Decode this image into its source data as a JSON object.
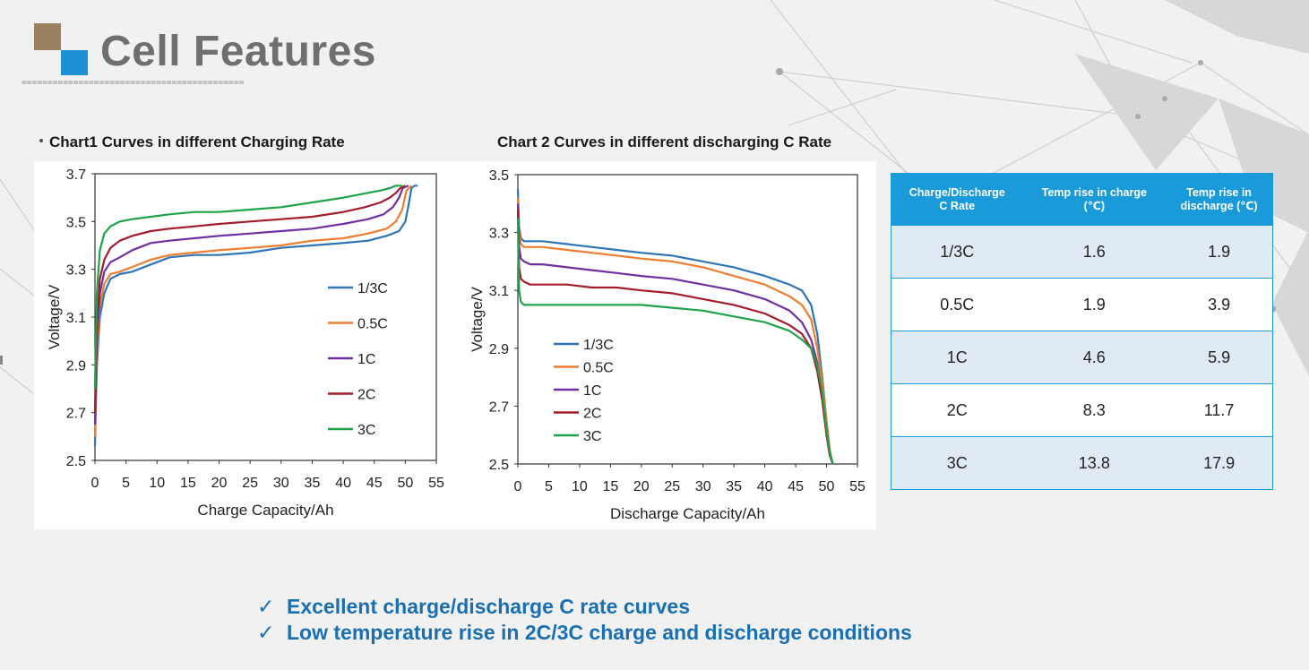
{
  "header": {
    "title": "Cell Features",
    "divider": "==========================================="
  },
  "colors": {
    "accent_blue": "#1e90d6",
    "accent_brown": "#9b8160",
    "table_header": "#1b9ad9",
    "note_text": "#1a6fb0"
  },
  "chart_data": [
    {
      "type": "line",
      "title": "Chart1  Curves in different Charging Rate",
      "xlabel": "Charge Capacity/Ah",
      "ylabel": "Voltage/V",
      "xlim": [
        0,
        55
      ],
      "ylim": [
        2.5,
        3.7
      ],
      "xticks": [
        0,
        5,
        10,
        15,
        20,
        25,
        30,
        35,
        40,
        45,
        50,
        55
      ],
      "yticks": [
        2.5,
        2.7,
        2.9,
        3.1,
        3.3,
        3.5,
        3.7
      ],
      "ytick_labels": [
        "2.5",
        "2.7",
        "2.9",
        "3.1",
        "3.3",
        "3.5",
        "3.7"
      ],
      "legend_position": "right-middle",
      "series": [
        {
          "name": "1/3C",
          "color": "#2e75b6",
          "x": [
            0,
            0.3,
            0.8,
            1.5,
            2.5,
            4,
            6,
            9,
            12,
            16,
            20,
            25,
            30,
            35,
            40,
            44,
            47,
            49,
            50,
            50.6,
            51,
            51.5,
            52
          ],
          "y": [
            2.56,
            2.9,
            3.1,
            3.2,
            3.26,
            3.28,
            3.29,
            3.32,
            3.35,
            3.36,
            3.36,
            3.37,
            3.39,
            3.4,
            3.41,
            3.42,
            3.44,
            3.46,
            3.5,
            3.58,
            3.64,
            3.65,
            3.65
          ]
        },
        {
          "name": "0.5C",
          "color": "#ed7d31",
          "x": [
            0,
            0.3,
            0.8,
            1.5,
            2.5,
            4,
            6,
            9,
            12,
            16,
            20,
            25,
            30,
            35,
            40,
            44,
            47,
            48.5,
            49.5,
            50.2,
            51
          ],
          "y": [
            2.6,
            2.95,
            3.15,
            3.24,
            3.28,
            3.29,
            3.31,
            3.34,
            3.36,
            3.37,
            3.38,
            3.39,
            3.4,
            3.42,
            3.43,
            3.45,
            3.47,
            3.5,
            3.55,
            3.63,
            3.65
          ]
        },
        {
          "name": "1C",
          "color": "#7030a0",
          "x": [
            0,
            0.3,
            0.8,
            1.5,
            2.5,
            4,
            6,
            9,
            12,
            16,
            20,
            25,
            30,
            35,
            40,
            44,
            46.5,
            48,
            49,
            49.6,
            50.5
          ],
          "y": [
            2.65,
            3.0,
            3.2,
            3.29,
            3.33,
            3.35,
            3.38,
            3.41,
            3.42,
            3.43,
            3.44,
            3.45,
            3.46,
            3.47,
            3.49,
            3.51,
            3.53,
            3.56,
            3.6,
            3.64,
            3.65
          ]
        },
        {
          "name": "2C",
          "color": "#a31c2a",
          "x": [
            0,
            0.3,
            0.8,
            1.5,
            2.5,
            4,
            6,
            9,
            12,
            16,
            20,
            25,
            30,
            35,
            40,
            43.5,
            46,
            47.5,
            48.5,
            49.2,
            50
          ],
          "y": [
            2.7,
            3.08,
            3.26,
            3.34,
            3.39,
            3.42,
            3.44,
            3.46,
            3.47,
            3.48,
            3.49,
            3.5,
            3.51,
            3.52,
            3.54,
            3.56,
            3.58,
            3.6,
            3.62,
            3.64,
            3.65
          ]
        },
        {
          "name": "3C",
          "color": "#1fa34a",
          "x": [
            0,
            0.3,
            0.8,
            1.5,
            2.5,
            4,
            6,
            9,
            12,
            16,
            20,
            25,
            30,
            35,
            40,
            44,
            46,
            47.5,
            48.5,
            49.5
          ],
          "y": [
            2.8,
            3.2,
            3.38,
            3.45,
            3.48,
            3.5,
            3.51,
            3.52,
            3.53,
            3.54,
            3.54,
            3.55,
            3.56,
            3.58,
            3.6,
            3.62,
            3.63,
            3.64,
            3.65,
            3.65
          ]
        }
      ]
    },
    {
      "type": "line",
      "title": "Chart 2  Curves in different discharging C Rate",
      "xlabel": "Discharge Capacity/Ah",
      "ylabel": "Voltage/V",
      "xlim": [
        0,
        55
      ],
      "ylim": [
        2.5,
        3.5
      ],
      "xticks": [
        0,
        5,
        10,
        15,
        20,
        25,
        30,
        35,
        40,
        45,
        50,
        55
      ],
      "yticks": [
        2.5,
        2.7,
        2.9,
        3.1,
        3.3,
        3.5
      ],
      "ytick_labels": [
        "2.5",
        "2.7",
        "2.9",
        "3.1",
        "3.3",
        "3.5"
      ],
      "legend_position": "left-lower",
      "series": [
        {
          "name": "1/3C",
          "color": "#2e75b6",
          "x": [
            0,
            0.2,
            0.5,
            1,
            2,
            4,
            8,
            12,
            16,
            20,
            25,
            30,
            35,
            40,
            44,
            46,
            47.5,
            48.5,
            49.3,
            50,
            50.5,
            51
          ],
          "y": [
            3.45,
            3.32,
            3.28,
            3.27,
            3.27,
            3.27,
            3.26,
            3.25,
            3.24,
            3.23,
            3.22,
            3.2,
            3.18,
            3.15,
            3.12,
            3.1,
            3.05,
            2.95,
            2.8,
            2.65,
            2.55,
            2.5
          ]
        },
        {
          "name": "0.5C",
          "color": "#ed7d31",
          "x": [
            0,
            0.2,
            0.5,
            1,
            2,
            4,
            8,
            12,
            16,
            20,
            25,
            30,
            35,
            40,
            44,
            46,
            47.5,
            48.5,
            49.3,
            50,
            50.5,
            51
          ],
          "y": [
            3.42,
            3.3,
            3.26,
            3.25,
            3.25,
            3.25,
            3.24,
            3.23,
            3.22,
            3.21,
            3.2,
            3.18,
            3.15,
            3.12,
            3.08,
            3.05,
            3.0,
            2.9,
            2.78,
            2.65,
            2.55,
            2.5
          ]
        },
        {
          "name": "1C",
          "color": "#7030a0",
          "x": [
            0,
            0.2,
            0.5,
            1,
            2,
            4,
            8,
            12,
            16,
            20,
            25,
            30,
            35,
            40,
            44,
            46,
            47.5,
            48.5,
            49.3,
            50,
            50.5,
            51
          ],
          "y": [
            3.4,
            3.25,
            3.21,
            3.2,
            3.19,
            3.19,
            3.18,
            3.17,
            3.16,
            3.15,
            3.14,
            3.12,
            3.1,
            3.07,
            3.03,
            2.99,
            2.93,
            2.85,
            2.74,
            2.62,
            2.54,
            2.5
          ]
        },
        {
          "name": "2C",
          "color": "#a31c2a",
          "x": [
            0,
            0.2,
            0.5,
            1,
            2,
            4,
            8,
            12,
            16,
            20,
            25,
            30,
            35,
            40,
            44,
            46,
            47.5,
            48.5,
            49.3,
            50,
            50.5,
            51
          ],
          "y": [
            3.38,
            3.18,
            3.14,
            3.13,
            3.12,
            3.12,
            3.12,
            3.11,
            3.11,
            3.1,
            3.09,
            3.07,
            3.05,
            3.02,
            2.98,
            2.95,
            2.9,
            2.82,
            2.72,
            2.6,
            2.53,
            2.5
          ]
        },
        {
          "name": "3C",
          "color": "#1fa34a",
          "x": [
            0,
            0.2,
            0.5,
            1,
            2,
            4,
            8,
            12,
            16,
            20,
            25,
            30,
            35,
            40,
            44,
            46,
            47.5,
            48.5,
            49.3,
            50,
            50.5,
            51
          ],
          "y": [
            3.35,
            3.1,
            3.06,
            3.05,
            3.05,
            3.05,
            3.05,
            3.05,
            3.05,
            3.05,
            3.04,
            3.03,
            3.01,
            2.99,
            2.96,
            2.93,
            2.9,
            2.84,
            2.75,
            2.62,
            2.54,
            2.5
          ]
        }
      ]
    }
  ],
  "table": {
    "headers": [
      [
        "Charge/Discharge",
        "C Rate"
      ],
      [
        "Temp rise in charge",
        "(℃)"
      ],
      [
        "Temp rise in",
        "discharge  (℃)"
      ]
    ],
    "rows": [
      {
        "rate": "1/3C",
        "charge": "1.6",
        "discharge": "1.9"
      },
      {
        "rate": "0.5C",
        "charge": "1.9",
        "discharge": "3.9"
      },
      {
        "rate": "1C",
        "charge": "4.6",
        "discharge": "5.9"
      },
      {
        "rate": "2C",
        "charge": "8.3",
        "discharge": "11.7"
      },
      {
        "rate": "3C",
        "charge": "13.8",
        "discharge": "17.9"
      }
    ]
  },
  "notes": {
    "check_glyph": "✓",
    "items": [
      "Excellent charge/discharge  C rate curves",
      "Low temperature rise in 2C/3C charge and discharge conditions"
    ]
  }
}
